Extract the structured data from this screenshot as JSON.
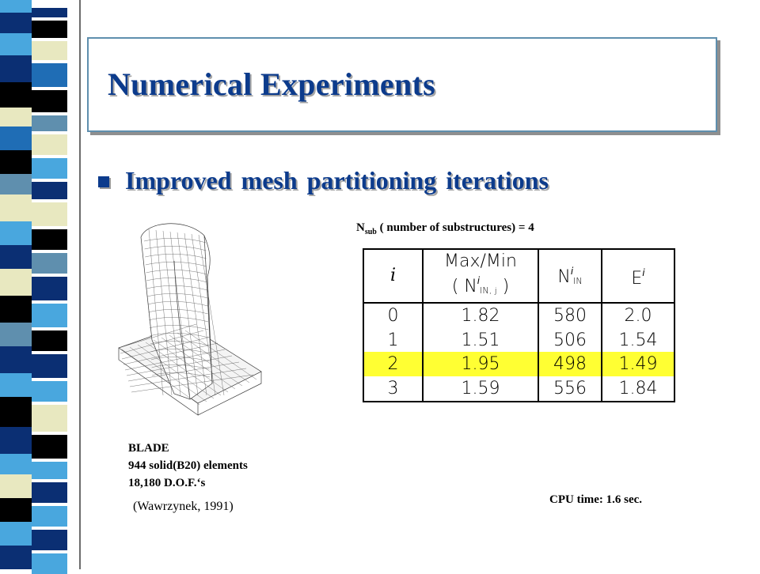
{
  "slide": {
    "title": "Numerical Experiments",
    "bullet": "Improved mesh partitioning iterations",
    "bullet_icon": "square-bullet-icon",
    "accent_color": "#0c3b8c"
  },
  "model": {
    "name": "BLADE",
    "elements": "944  solid(B20) elements",
    "dof": "18,180 D.O.F.‘s",
    "citation": "(Wawrzynek, 1991)"
  },
  "nsub": {
    "symbol": "N",
    "subscript": "sub",
    "text": " ( number of substructures) = 4"
  },
  "table": {
    "headers": {
      "i": "i",
      "maxmin_top": "Max/Min",
      "maxmin_bottom_open": "( N",
      "maxmin_sup": "i",
      "maxmin_sub": "IN, j",
      "maxmin_close": " )",
      "nin": "N",
      "nin_sup": "i",
      "nin_sub": "IN",
      "e": "E",
      "e_sup": "i"
    },
    "rows": [
      {
        "i": "0",
        "ratio": "1.82",
        "nin": "580",
        "e": "2.0",
        "highlight": false
      },
      {
        "i": "1",
        "ratio": "1.51",
        "nin": "506",
        "e": "1.54",
        "highlight": false
      },
      {
        "i": "2",
        "ratio": "1.95",
        "nin": "498",
        "e": "1.49",
        "highlight": true
      },
      {
        "i": "3",
        "ratio": "1.59",
        "nin": "556",
        "e": "1.84",
        "highlight": false
      }
    ],
    "highlight_color": "#ffff33"
  },
  "cpu": "CPU time: 1.6 sec."
}
